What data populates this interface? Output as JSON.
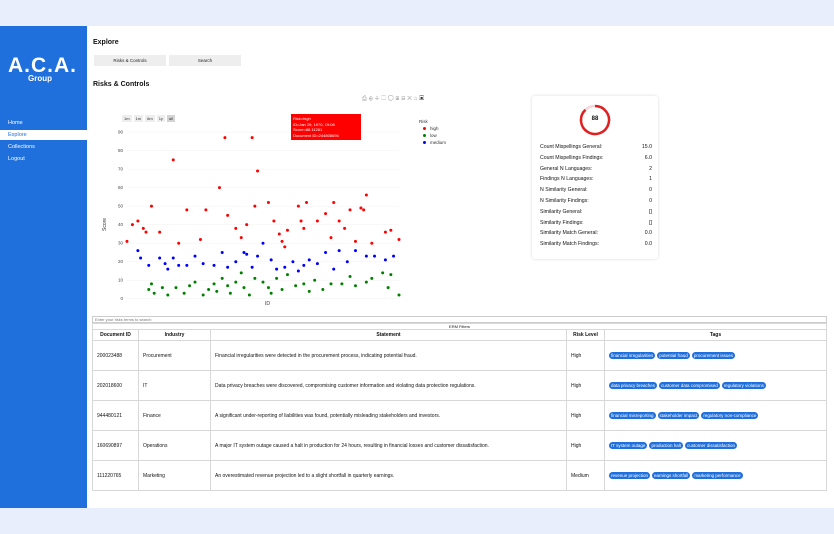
{
  "sidebar": {
    "logo": "A.C.A.",
    "logo_sub": "Group",
    "items": [
      {
        "label": "Home"
      },
      {
        "label": "Explore"
      },
      {
        "label": "Collections"
      },
      {
        "label": "Logout"
      }
    ],
    "active_item": "Explore"
  },
  "page": {
    "title": "Explore",
    "tabs": [
      {
        "label": "Risks & Controls"
      },
      {
        "label": "Search"
      }
    ],
    "section_title": "Risks & Controls"
  },
  "chart_data": {
    "type": "scatter",
    "xlabel": "ID",
    "ylabel": "Score",
    "ylim": [
      -5,
      96
    ],
    "yticks": [
      0,
      10,
      20,
      30,
      40,
      50,
      60,
      70,
      80,
      90
    ],
    "range_buttons": [
      "1m",
      "1m",
      "6m",
      "1y",
      "all"
    ],
    "range_active": "all",
    "legend_title": "Risk",
    "legend": [
      {
        "name": "high",
        "color": "#ff0000"
      },
      {
        "name": "low",
        "color": "#008000"
      },
      {
        "name": "medium",
        "color": "#0000ff"
      }
    ],
    "tooltip": {
      "line1": "Risk=high",
      "line2": "ID=Jan 29, 1970, 19:08",
      "line3": "Score=88.11261",
      "line4": "Document ID=244808696"
    },
    "series": [
      {
        "name": "high",
        "color": "#ff0000",
        "points": [
          [
            0.0,
            31
          ],
          [
            0.02,
            40
          ],
          [
            0.04,
            42
          ],
          [
            0.06,
            38
          ],
          [
            0.07,
            36
          ],
          [
            0.09,
            50
          ],
          [
            0.12,
            36
          ],
          [
            0.17,
            75
          ],
          [
            0.19,
            30
          ],
          [
            0.22,
            48
          ],
          [
            0.27,
            32
          ],
          [
            0.29,
            48
          ],
          [
            0.34,
            60
          ],
          [
            0.36,
            87
          ],
          [
            0.37,
            45
          ],
          [
            0.4,
            38
          ],
          [
            0.42,
            33
          ],
          [
            0.44,
            40
          ],
          [
            0.46,
            87
          ],
          [
            0.47,
            50
          ],
          [
            0.48,
            69
          ],
          [
            0.52,
            52
          ],
          [
            0.54,
            42
          ],
          [
            0.56,
            35
          ],
          [
            0.57,
            31
          ],
          [
            0.58,
            28
          ],
          [
            0.59,
            37
          ],
          [
            0.61,
            88
          ],
          [
            0.62,
            88
          ],
          [
            0.63,
            50
          ],
          [
            0.64,
            42
          ],
          [
            0.65,
            38
          ],
          [
            0.66,
            52
          ],
          [
            0.67,
            88
          ],
          [
            0.7,
            42
          ],
          [
            0.73,
            46
          ],
          [
            0.75,
            33
          ],
          [
            0.76,
            52
          ],
          [
            0.78,
            42
          ],
          [
            0.8,
            38
          ],
          [
            0.82,
            48
          ],
          [
            0.84,
            31
          ],
          [
            0.86,
            49
          ],
          [
            0.87,
            48
          ],
          [
            0.88,
            56
          ],
          [
            0.9,
            30
          ],
          [
            0.95,
            36
          ],
          [
            0.97,
            37
          ],
          [
            1.0,
            32
          ]
        ]
      },
      {
        "name": "medium",
        "color": "#0000ff",
        "points": [
          [
            0.04,
            26
          ],
          [
            0.05,
            22
          ],
          [
            0.08,
            18
          ],
          [
            0.12,
            22
          ],
          [
            0.14,
            19
          ],
          [
            0.15,
            16
          ],
          [
            0.17,
            22
          ],
          [
            0.19,
            18
          ],
          [
            0.22,
            18
          ],
          [
            0.25,
            23
          ],
          [
            0.28,
            19
          ],
          [
            0.32,
            18
          ],
          [
            0.35,
            25
          ],
          [
            0.37,
            17
          ],
          [
            0.4,
            20
          ],
          [
            0.43,
            25
          ],
          [
            0.44,
            24
          ],
          [
            0.46,
            17
          ],
          [
            0.48,
            23
          ],
          [
            0.5,
            30
          ],
          [
            0.53,
            21
          ],
          [
            0.55,
            16
          ],
          [
            0.58,
            17
          ],
          [
            0.61,
            20
          ],
          [
            0.63,
            15
          ],
          [
            0.65,
            18
          ],
          [
            0.67,
            21
          ],
          [
            0.7,
            19
          ],
          [
            0.73,
            25
          ],
          [
            0.76,
            16
          ],
          [
            0.78,
            26
          ],
          [
            0.81,
            20
          ],
          [
            0.84,
            26
          ],
          [
            0.88,
            23
          ],
          [
            0.91,
            23
          ],
          [
            0.95,
            21
          ],
          [
            0.98,
            23
          ]
        ]
      },
      {
        "name": "low",
        "color": "#008000",
        "points": [
          [
            0.08,
            5
          ],
          [
            0.09,
            8
          ],
          [
            0.1,
            3
          ],
          [
            0.13,
            6
          ],
          [
            0.15,
            2
          ],
          [
            0.18,
            6
          ],
          [
            0.21,
            3
          ],
          [
            0.23,
            7
          ],
          [
            0.25,
            9
          ],
          [
            0.28,
            2
          ],
          [
            0.3,
            5
          ],
          [
            0.32,
            8
          ],
          [
            0.33,
            4
          ],
          [
            0.35,
            11
          ],
          [
            0.37,
            7
          ],
          [
            0.38,
            3
          ],
          [
            0.4,
            9
          ],
          [
            0.42,
            14
          ],
          [
            0.43,
            6
          ],
          [
            0.45,
            2
          ],
          [
            0.47,
            11
          ],
          [
            0.5,
            9
          ],
          [
            0.52,
            6
          ],
          [
            0.53,
            3
          ],
          [
            0.55,
            11
          ],
          [
            0.57,
            5
          ],
          [
            0.59,
            13
          ],
          [
            0.62,
            7
          ],
          [
            0.65,
            8
          ],
          [
            0.67,
            4
          ],
          [
            0.69,
            10
          ],
          [
            0.72,
            5
          ],
          [
            0.75,
            8
          ],
          [
            0.79,
            8
          ],
          [
            0.82,
            12
          ],
          [
            0.84,
            7
          ],
          [
            0.88,
            9
          ],
          [
            0.9,
            11
          ],
          [
            0.94,
            14
          ],
          [
            0.96,
            6
          ],
          [
            0.97,
            13
          ],
          [
            1.0,
            2
          ]
        ]
      }
    ]
  },
  "stats": {
    "gauge_value": "88",
    "gauge_fraction": 0.88,
    "rows": [
      {
        "label": "Count Mispellings General:",
        "value": "15.0"
      },
      {
        "label": "Count Mispellings Findings:",
        "value": "6.0"
      },
      {
        "label": "General N Languages:",
        "value": "2"
      },
      {
        "label": "Findings N Languages:",
        "value": "1"
      },
      {
        "label": "N Similarity General:",
        "value": "0"
      },
      {
        "label": "N Similarity Findings:",
        "value": "0"
      },
      {
        "label": "Similarity General:",
        "value": "[]"
      },
      {
        "label": "Similarity Findings:",
        "value": "[]"
      },
      {
        "label": "Similarity Match General:",
        "value": "0.0"
      },
      {
        "label": "Similarity Match Findings:",
        "value": "0.0"
      }
    ]
  },
  "table": {
    "search_placeholder": "Enter your risks terms to search",
    "filters_title": "ERM Filters",
    "headers": [
      "Document ID",
      "Industry",
      "Statement",
      "Risk Level",
      "Tags"
    ],
    "rows": [
      {
        "doc_id": "200023488",
        "industry": "Procurement",
        "statement": "Financial irregularities were detected in the procurement process, indicating potential fraud.",
        "risk": "High",
        "tags": [
          "financial irregularities",
          "potential fraud",
          "procurement issues"
        ]
      },
      {
        "doc_id": "202018600",
        "industry": "IT",
        "statement": "Data privacy breaches were discovered, compromising customer information and violating data protection regulations.",
        "risk": "High",
        "tags": [
          "data privacy breaches",
          "customer data compromised",
          "regulatory violations"
        ]
      },
      {
        "doc_id": "944480121",
        "industry": "Finance",
        "statement": "A significant under-reporting of liabilities was found, potentially misleading stakeholders and investors.",
        "risk": "High",
        "tags": [
          "financial misreporting",
          "stakeholder impact",
          "regulatory non-compliance"
        ]
      },
      {
        "doc_id": "160690897",
        "industry": "Operations",
        "statement": "A major IT system outage caused a halt in production for 24 hours, resulting in financial losses and customer dissatisfaction.",
        "risk": "High",
        "tags": [
          "IT system outage",
          "production halt",
          "customer dissatisfaction"
        ]
      },
      {
        "doc_id": "111220765",
        "industry": "Marketing",
        "statement": "An overestimated revenue projection led to a slight shortfall in quarterly earnings.",
        "risk": "Medium",
        "tags": [
          "revenue projection",
          "earnings shortfall",
          "marketing performance"
        ]
      }
    ]
  }
}
